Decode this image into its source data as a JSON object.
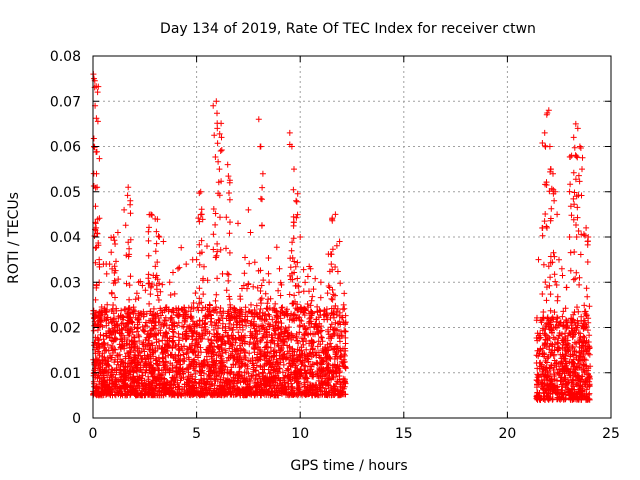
{
  "chart_data": {
    "type": "scatter",
    "title": "Day 134 of 2019, Rate Of TEC Index for receiver ctwn",
    "xlabel": "GPS time / hours",
    "ylabel": "ROTI / TECUs",
    "xlim": [
      0,
      25
    ],
    "ylim": [
      0,
      0.08
    ],
    "xticks": [
      "0",
      "5",
      "10",
      "15",
      "20",
      "25"
    ],
    "yticks": [
      "0",
      "0.01",
      "0.02",
      "0.03",
      "0.04",
      "0.05",
      "0.06",
      "0.07",
      "0.08"
    ],
    "grid": true,
    "marker": "plus",
    "color": "#ff0000",
    "series": [
      {
        "name": "ROTI",
        "segments": [
          {
            "x_range": [
              0.0,
              12.2
            ],
            "baseline": [
              0.005,
              0.022
            ],
            "peaks_x": [
              0.1,
              0.15,
              0.2,
              1.0,
              1.7,
              2.8,
              3.1,
              5.2,
              5.9,
              6.1,
              6.5,
              8.1,
              9.6,
              9.8,
              11.6
            ],
            "peaks_y": [
              0.076,
              0.075,
              0.06,
              0.04,
              0.05,
              0.045,
              0.044,
              0.05,
              0.069,
              0.07,
              0.056,
              0.066,
              0.063,
              0.055,
              0.045
            ]
          },
          {
            "x_range": [
              21.4,
              24.0
            ],
            "baseline": [
              0.004,
              0.02
            ],
            "peaks_x": [
              21.8,
              22.0,
              22.2,
              23.1,
              23.3,
              23.5,
              23.8
            ],
            "peaks_y": [
              0.065,
              0.068,
              0.055,
              0.058,
              0.065,
              0.06,
              0.042
            ]
          }
        ]
      }
    ],
    "sample_points": [
      [
        0.02,
        0.076
      ],
      [
        0.05,
        0.075
      ],
      [
        0.1,
        0.069
      ],
      [
        0.05,
        0.06
      ],
      [
        0.2,
        0.051
      ],
      [
        0.15,
        0.042
      ],
      [
        0.3,
        0.035
      ],
      [
        0.5,
        0.034
      ],
      [
        0.8,
        0.034
      ],
      [
        1.0,
        0.04
      ],
      [
        1.2,
        0.041
      ],
      [
        1.5,
        0.046
      ],
      [
        1.7,
        0.051
      ],
      [
        1.8,
        0.048
      ],
      [
        2.2,
        0.03
      ],
      [
        2.8,
        0.045
      ],
      [
        3.0,
        0.044
      ],
      [
        3.2,
        0.04
      ],
      [
        3.4,
        0.039
      ],
      [
        3.7,
        0.03
      ],
      [
        4.1,
        0.033
      ],
      [
        4.5,
        0.034
      ],
      [
        5.0,
        0.035
      ],
      [
        5.2,
        0.05
      ],
      [
        5.5,
        0.038
      ],
      [
        5.8,
        0.069
      ],
      [
        5.95,
        0.07
      ],
      [
        6.0,
        0.064
      ],
      [
        6.1,
        0.055
      ],
      [
        6.2,
        0.062
      ],
      [
        6.5,
        0.056
      ],
      [
        6.6,
        0.052
      ],
      [
        7.0,
        0.043
      ],
      [
        7.5,
        0.046
      ],
      [
        7.6,
        0.041
      ],
      [
        8.0,
        0.066
      ],
      [
        8.1,
        0.06
      ],
      [
        8.2,
        0.054
      ],
      [
        8.5,
        0.03
      ],
      [
        9.0,
        0.033
      ],
      [
        9.5,
        0.063
      ],
      [
        9.6,
        0.06
      ],
      [
        9.7,
        0.055
      ],
      [
        9.8,
        0.048
      ],
      [
        10.0,
        0.04
      ],
      [
        10.5,
        0.033
      ],
      [
        11.0,
        0.03
      ],
      [
        11.5,
        0.034
      ],
      [
        11.7,
        0.045
      ],
      [
        11.9,
        0.039
      ],
      [
        12.1,
        0.025
      ],
      [
        21.5,
        0.035
      ],
      [
        21.7,
        0.042
      ],
      [
        21.8,
        0.063
      ],
      [
        21.9,
        0.067
      ],
      [
        22.0,
        0.068
      ],
      [
        22.05,
        0.06
      ],
      [
        22.1,
        0.055
      ],
      [
        22.2,
        0.054
      ],
      [
        22.3,
        0.05
      ],
      [
        22.4,
        0.045
      ],
      [
        23.0,
        0.04
      ],
      [
        23.1,
        0.058
      ],
      [
        23.2,
        0.062
      ],
      [
        23.3,
        0.065
      ],
      [
        23.4,
        0.064
      ],
      [
        23.5,
        0.06
      ],
      [
        23.6,
        0.055
      ],
      [
        23.8,
        0.042
      ],
      [
        23.9,
        0.04
      ]
    ]
  }
}
